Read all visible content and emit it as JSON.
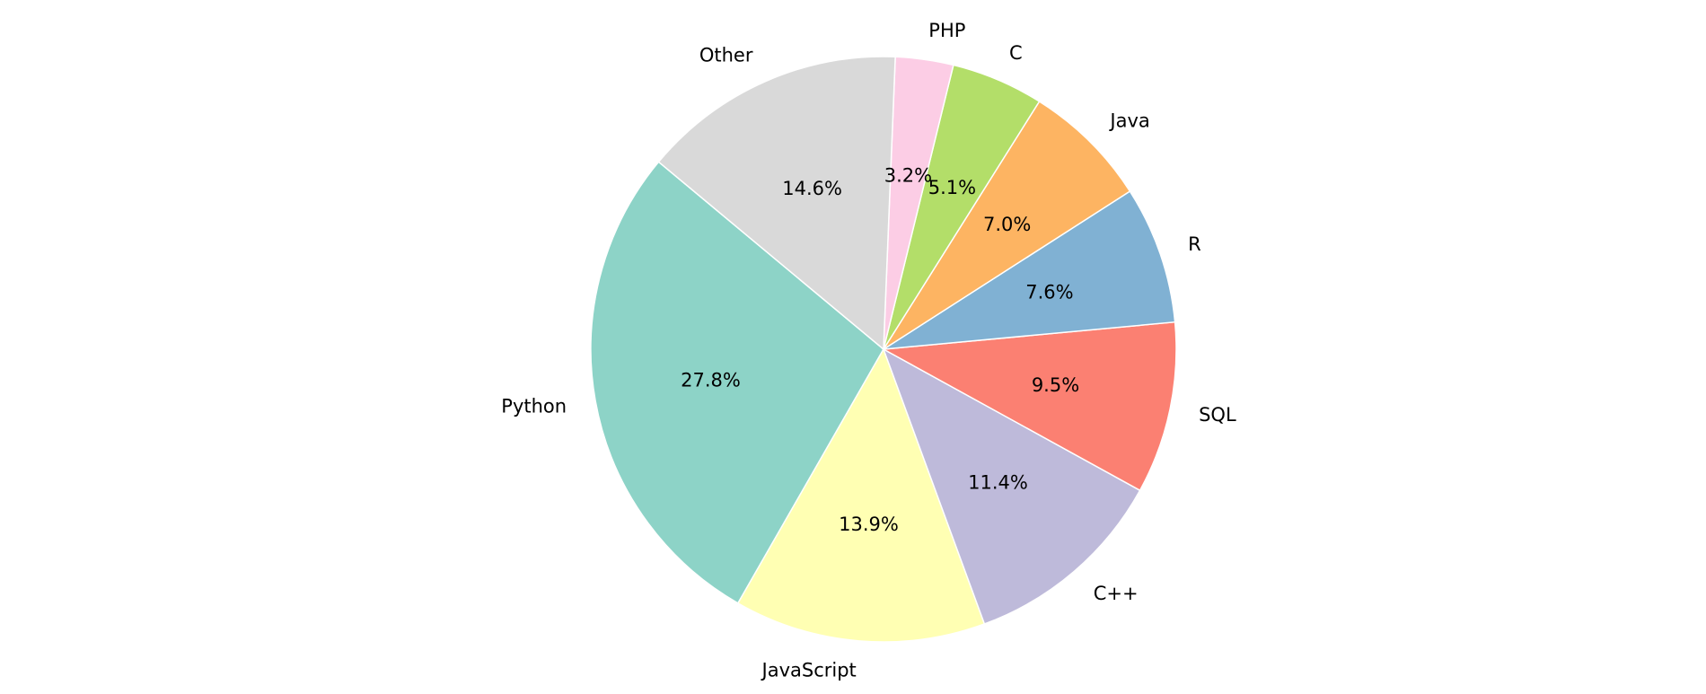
{
  "chart_data": {
    "type": "pie",
    "title": "",
    "start_angle_deg": 140.2,
    "direction": "counterclockwise",
    "edge_color": "#ffffff",
    "slices": [
      {
        "label": "Python",
        "value": 27.8,
        "pct_text": "27.8%",
        "color": "#8dd3c7"
      },
      {
        "label": "JavaScript",
        "value": 13.9,
        "pct_text": "13.9%",
        "color": "#ffffb3"
      },
      {
        "label": "C++",
        "value": 11.4,
        "pct_text": "11.4%",
        "color": "#bebada"
      },
      {
        "label": "SQL",
        "value": 9.5,
        "pct_text": "9.5%",
        "color": "#fb8072"
      },
      {
        "label": "R",
        "value": 7.6,
        "pct_text": "7.6%",
        "color": "#80b1d3"
      },
      {
        "label": "Java",
        "value": 7.0,
        "pct_text": "7.0%",
        "color": "#fdb462"
      },
      {
        "label": "C",
        "value": 5.1,
        "pct_text": "5.1%",
        "color": "#b3de69"
      },
      {
        "label": "PHP",
        "value": 3.2,
        "pct_text": "3.2%",
        "color": "#fccde5"
      },
      {
        "label": "Other",
        "value": 14.6,
        "pct_text": "14.6%",
        "color": "#d9d9d9"
      }
    ]
  }
}
